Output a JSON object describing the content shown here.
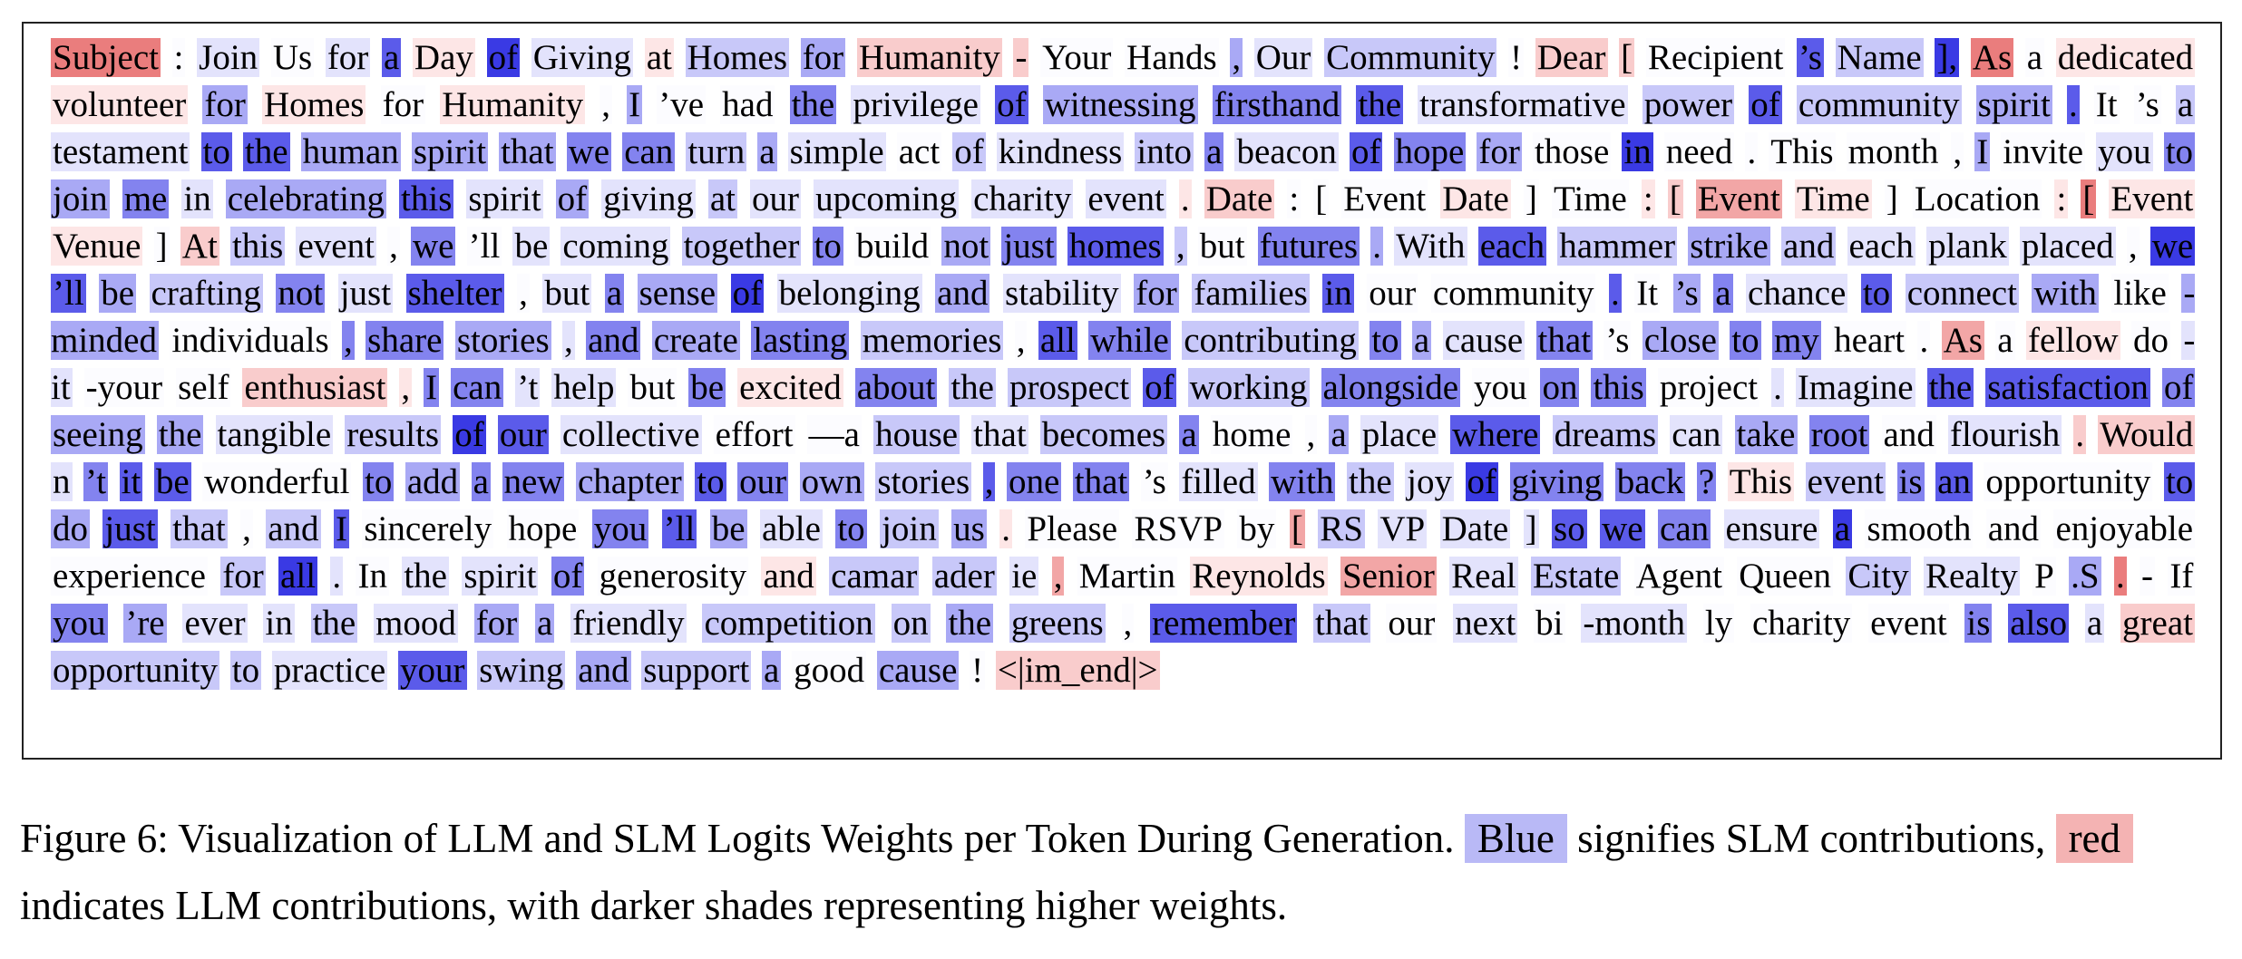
{
  "colors": {
    "blue_scale": [
      "#fcfcff",
      "#e3e3fc",
      "#c8c8f9",
      "#a9a9f5",
      "#8383ef",
      "#5b5bea",
      "#3a3ae4"
    ],
    "red_scale": [
      "#fff8f8",
      "#fde6e6",
      "#f9cccc",
      "#f2a6a6",
      "#ea7d7d"
    ],
    "legend_blue": "#b9b9f6",
    "legend_red": "#f4b3b3"
  },
  "tokens": [
    [
      "Subject",
      "r4"
    ],
    [
      ":",
      "b0"
    ],
    [
      "Join",
      "b1"
    ],
    [
      "Us",
      "b0"
    ],
    [
      "for",
      "b1"
    ],
    [
      "a",
      "b5"
    ],
    [
      "Day",
      "r1"
    ],
    [
      "of",
      "b6"
    ],
    [
      "Giving",
      "b1"
    ],
    [
      "at",
      "r1"
    ],
    [
      "Homes",
      "b2"
    ],
    [
      "for",
      "b3"
    ],
    [
      "Humanity",
      "r2"
    ],
    [
      "-",
      "r2"
    ],
    [
      "Your",
      "b0"
    ],
    [
      "Hands",
      "b0"
    ],
    [
      ",",
      "b3"
    ],
    [
      "Our",
      "b1"
    ],
    [
      "Community",
      "b2"
    ],
    [
      "!",
      "b0"
    ],
    [
      "Dear",
      "r2"
    ],
    [
      "[",
      "r2"
    ],
    [
      "Recipient",
      "b0"
    ],
    [
      "’s",
      "b5"
    ],
    [
      "Name",
      "b2"
    ],
    [
      "],",
      "b6"
    ],
    [
      "As",
      "r4"
    ],
    [
      "a",
      "b0"
    ],
    [
      "dedicated",
      "r1"
    ],
    [
      "volunteer",
      "r1"
    ],
    [
      "for",
      "b3"
    ],
    [
      "Homes",
      "r1"
    ],
    [
      "for",
      "b0"
    ],
    [
      "Humanity",
      "r1"
    ],
    [
      ",",
      "b0"
    ],
    [
      "I",
      "b3"
    ],
    [
      "’ve",
      "b0"
    ],
    [
      "had",
      "b0"
    ],
    [
      "the",
      "b4"
    ],
    [
      "privilege",
      "b1"
    ],
    [
      "of",
      "b5"
    ],
    [
      "witnessing",
      "b3"
    ],
    [
      "firsthand",
      "b4"
    ],
    [
      "the",
      "b5"
    ],
    [
      "transformative",
      "b1"
    ],
    [
      "power",
      "b2"
    ],
    [
      "of",
      "b5"
    ],
    [
      "community",
      "b2"
    ],
    [
      "spirit",
      "b3"
    ],
    [
      ".",
      "b5"
    ],
    [
      "It",
      "b0"
    ],
    [
      "’s",
      "b0"
    ],
    [
      "a",
      "b2"
    ],
    [
      "testament",
      "b1"
    ],
    [
      "to",
      "b5"
    ],
    [
      "the",
      "b5"
    ],
    [
      "human",
      "b3"
    ],
    [
      "spirit",
      "b3"
    ],
    [
      "that",
      "b3"
    ],
    [
      "we",
      "b4"
    ],
    [
      "can",
      "b4"
    ],
    [
      "turn",
      "b2"
    ],
    [
      "a",
      "b3"
    ],
    [
      "simple",
      "b1"
    ],
    [
      "act",
      "b0"
    ],
    [
      "of",
      "b2"
    ],
    [
      "kindness",
      "b1"
    ],
    [
      "into",
      "b2"
    ],
    [
      "a",
      "b4"
    ],
    [
      "beacon",
      "b1"
    ],
    [
      "of",
      "b5"
    ],
    [
      "hope",
      "b4"
    ],
    [
      "for",
      "b3"
    ],
    [
      "those",
      "b0"
    ],
    [
      "in",
      "b6"
    ],
    [
      "need",
      "b0"
    ],
    [
      ".",
      "b0"
    ],
    [
      "This",
      "b0"
    ],
    [
      "month",
      "b0"
    ],
    [
      ",",
      "b0"
    ],
    [
      "I",
      "b3"
    ],
    [
      "invite",
      "b0"
    ],
    [
      "you",
      "b1"
    ],
    [
      "to",
      "b4"
    ],
    [
      "join",
      "b3"
    ],
    [
      "me",
      "b4"
    ],
    [
      "in",
      "b1"
    ],
    [
      "celebrating",
      "b3"
    ],
    [
      "this",
      "b5"
    ],
    [
      "spirit",
      "b1"
    ],
    [
      "of",
      "b3"
    ],
    [
      "giving",
      "b1"
    ],
    [
      "at",
      "b2"
    ],
    [
      "our",
      "b1"
    ],
    [
      "upcoming",
      "b1"
    ],
    [
      "charity",
      "b1"
    ],
    [
      "event",
      "b1"
    ],
    [
      ".",
      "r1"
    ],
    [
      "Date",
      "r2"
    ],
    [
      ":",
      "b0"
    ],
    [
      "[",
      "b0"
    ],
    [
      "Event",
      "b0"
    ],
    [
      "Date",
      "r1"
    ],
    [
      "]",
      "b0"
    ],
    [
      "Time",
      "b0"
    ],
    [
      ":",
      "r1"
    ],
    [
      "[",
      "r2"
    ],
    [
      "Event",
      "r3"
    ],
    [
      "Time",
      "r1"
    ],
    [
      "]",
      "b0"
    ],
    [
      "Location",
      "b0"
    ],
    [
      ":",
      "r1"
    ],
    [
      "[",
      "r4"
    ],
    [
      "Event",
      "r1"
    ],
    [
      "Venue",
      "r1"
    ],
    [
      "]",
      "b0"
    ],
    [
      "At",
      "r2"
    ],
    [
      "this",
      "b2"
    ],
    [
      "event",
      "b1"
    ],
    [
      ",",
      "b0"
    ],
    [
      "we",
      "b4"
    ],
    [
      "’ll",
      "b0"
    ],
    [
      "be",
      "b1"
    ],
    [
      "coming",
      "b1"
    ],
    [
      "together",
      "b2"
    ],
    [
      "to",
      "b4"
    ],
    [
      "build",
      "b0"
    ],
    [
      "not",
      "b3"
    ],
    [
      "just",
      "b4"
    ],
    [
      "homes",
      "b5"
    ],
    [
      ",",
      "b2"
    ],
    [
      "but",
      "b0"
    ],
    [
      "futures",
      "b4"
    ],
    [
      ".",
      "b3"
    ],
    [
      "With",
      "b1"
    ],
    [
      "each",
      "b5"
    ],
    [
      "hammer",
      "b2"
    ],
    [
      "strike",
      "b3"
    ],
    [
      "and",
      "b2"
    ],
    [
      "each",
      "b1"
    ],
    [
      "plank",
      "b1"
    ],
    [
      "placed",
      "b1"
    ],
    [
      ",",
      "b0"
    ],
    [
      "we",
      "b6"
    ],
    [
      "’ll",
      "b5"
    ],
    [
      "be",
      "b3"
    ],
    [
      "crafting",
      "b2"
    ],
    [
      "not",
      "b4"
    ],
    [
      "just",
      "b1"
    ],
    [
      "shelter",
      "b5"
    ],
    [
      ",",
      "b0"
    ],
    [
      "but",
      "b1"
    ],
    [
      "a",
      "b4"
    ],
    [
      "sense",
      "b3"
    ],
    [
      "of",
      "b6"
    ],
    [
      "belonging",
      "b1"
    ],
    [
      "and",
      "b3"
    ],
    [
      "stability",
      "b1"
    ],
    [
      "for",
      "b3"
    ],
    [
      "families",
      "b2"
    ],
    [
      "in",
      "b5"
    ],
    [
      "our",
      "b0"
    ],
    [
      "community",
      "b0"
    ],
    [
      ".",
      "b5"
    ],
    [
      "It",
      "b0"
    ],
    [
      "’s",
      "b3"
    ],
    [
      "a",
      "b4"
    ],
    [
      "chance",
      "b1"
    ],
    [
      "to",
      "b5"
    ],
    [
      "connect",
      "b2"
    ],
    [
      "with",
      "b3"
    ],
    [
      "like",
      "b0"
    ],
    [
      "-minded",
      "b3"
    ],
    [
      "individuals",
      "b0"
    ],
    [
      ",",
      "b4"
    ],
    [
      "share",
      "b4"
    ],
    [
      "stories",
      "b3"
    ],
    [
      ",",
      "b1"
    ],
    [
      "and",
      "b4"
    ],
    [
      "create",
      "b3"
    ],
    [
      "lasting",
      "b4"
    ],
    [
      "memories",
      "b2"
    ],
    [
      ",",
      "b0"
    ],
    [
      "all",
      "b5"
    ],
    [
      "while",
      "b4"
    ],
    [
      "contributing",
      "b2"
    ],
    [
      "to",
      "b4"
    ],
    [
      "a",
      "b3"
    ],
    [
      "cause",
      "b1"
    ],
    [
      "that",
      "b4"
    ],
    [
      "’s",
      "b0"
    ],
    [
      "close",
      "b3"
    ],
    [
      "to",
      "b4"
    ],
    [
      "my",
      "b4"
    ],
    [
      "heart",
      "b0"
    ],
    [
      ".",
      "b0"
    ],
    [
      "As",
      "r3"
    ],
    [
      "a",
      "b0"
    ],
    [
      "fellow",
      "r1"
    ],
    [
      "do",
      "b0"
    ],
    [
      "-it",
      "b1"
    ],
    [
      "-your",
      "b0"
    ],
    [
      "self",
      "b0"
    ],
    [
      "enthusiast",
      "r2"
    ],
    [
      ",",
      "r1"
    ],
    [
      "I",
      "b4"
    ],
    [
      "can",
      "b4"
    ],
    [
      "’t",
      "b1"
    ],
    [
      "help",
      "b1"
    ],
    [
      "but",
      "b0"
    ],
    [
      "be",
      "b4"
    ],
    [
      "excited",
      "r1"
    ],
    [
      "about",
      "b4"
    ],
    [
      "the",
      "b2"
    ],
    [
      "prospect",
      "b2"
    ],
    [
      "of",
      "b5"
    ],
    [
      "working",
      "b2"
    ],
    [
      "alongside",
      "b4"
    ],
    [
      "you",
      "b0"
    ],
    [
      "on",
      "b4"
    ],
    [
      "this",
      "b4"
    ],
    [
      "project",
      "b0"
    ],
    [
      ".",
      "b1"
    ],
    [
      "Imagine",
      "b1"
    ],
    [
      "the",
      "b5"
    ],
    [
      "satisfaction",
      "b5"
    ],
    [
      "of",
      "b4"
    ],
    [
      "seeing",
      "b3"
    ],
    [
      "the",
      "b3"
    ],
    [
      "tangible",
      "b1"
    ],
    [
      "results",
      "b2"
    ],
    [
      "of",
      "b6"
    ],
    [
      "our",
      "b5"
    ],
    [
      "collective",
      "b1"
    ],
    [
      "effort",
      "b0"
    ],
    [
      "—a",
      "b0"
    ],
    [
      "house",
      "b2"
    ],
    [
      "that",
      "b1"
    ],
    [
      "becomes",
      "b2"
    ],
    [
      "a",
      "b4"
    ],
    [
      "home",
      "b0"
    ],
    [
      ",",
      "b0"
    ],
    [
      "a",
      "b3"
    ],
    [
      "place",
      "b1"
    ],
    [
      "where",
      "b5"
    ],
    [
      "dreams",
      "b2"
    ],
    [
      "can",
      "b1"
    ],
    [
      "take",
      "b3"
    ],
    [
      "root",
      "b4"
    ],
    [
      "and",
      "b0"
    ],
    [
      "flourish",
      "b1"
    ],
    [
      ".",
      "r2"
    ],
    [
      "Would",
      "r2"
    ],
    [
      "n",
      "b1"
    ],
    [
      "’t",
      "b4"
    ],
    [
      "it",
      "b5"
    ],
    [
      "be",
      "b5"
    ],
    [
      "wonderful",
      "b0"
    ],
    [
      "to",
      "b4"
    ],
    [
      "add",
      "b3"
    ],
    [
      "a",
      "b4"
    ],
    [
      "new",
      "b4"
    ],
    [
      "chapter",
      "b3"
    ],
    [
      "to",
      "b5"
    ],
    [
      "our",
      "b4"
    ],
    [
      "own",
      "b3"
    ],
    [
      "stories",
      "b2"
    ],
    [
      ",",
      "b5"
    ],
    [
      "one",
      "b4"
    ],
    [
      "that",
      "b4"
    ],
    [
      "’s",
      "b0"
    ],
    [
      "filled",
      "b1"
    ],
    [
      "with",
      "b4"
    ],
    [
      "the",
      "b2"
    ],
    [
      "joy",
      "b1"
    ],
    [
      "of",
      "b6"
    ],
    [
      "giving",
      "b4"
    ],
    [
      "back",
      "b4"
    ],
    [
      "?",
      "b4"
    ],
    [
      "This",
      "r1"
    ],
    [
      "event",
      "b2"
    ],
    [
      "is",
      "b4"
    ],
    [
      "an",
      "b5"
    ],
    [
      "opportunity",
      "b0"
    ],
    [
      "to",
      "b5"
    ],
    [
      "do",
      "b3"
    ],
    [
      "just",
      "b5"
    ],
    [
      "that",
      "b2"
    ],
    [
      ",",
      "b0"
    ],
    [
      "and",
      "b2"
    ],
    [
      "I",
      "b5"
    ],
    [
      "sincerely",
      "b0"
    ],
    [
      "hope",
      "b0"
    ],
    [
      "you",
      "b4"
    ],
    [
      "’ll",
      "b5"
    ],
    [
      "be",
      "b3"
    ],
    [
      "able",
      "b1"
    ],
    [
      "to",
      "b4"
    ],
    [
      "join",
      "b2"
    ],
    [
      "us",
      "b3"
    ],
    [
      ".",
      "r1"
    ],
    [
      "Please",
      "b0"
    ],
    [
      "RSVP",
      "b0"
    ],
    [
      "by",
      "b0"
    ],
    [
      "[",
      "r3"
    ],
    [
      "RS",
      "b2"
    ],
    [
      "VP",
      "b1"
    ],
    [
      "Date",
      "b1"
    ],
    [
      "]",
      "b1"
    ],
    [
      "so",
      "b5"
    ],
    [
      "we",
      "b5"
    ],
    [
      "can",
      "b4"
    ],
    [
      "ensure",
      "b1"
    ],
    [
      "a",
      "b6"
    ],
    [
      "smooth",
      "b0"
    ],
    [
      "and",
      "b0"
    ],
    [
      "enjoyable",
      "b0"
    ],
    [
      "experience",
      "b0"
    ],
    [
      "for",
      "b2"
    ],
    [
      "all",
      "b6"
    ],
    [
      ".",
      "b1"
    ],
    [
      "In",
      "b0"
    ],
    [
      "the",
      "b1"
    ],
    [
      "spirit",
      "b1"
    ],
    [
      "of",
      "b4"
    ],
    [
      "generosity",
      "b0"
    ],
    [
      "and",
      "r1"
    ],
    [
      "camar",
      "b2"
    ],
    [
      "ader",
      "b2"
    ],
    [
      "ie",
      "b1"
    ],
    [
      ",",
      "r3"
    ],
    [
      "Martin",
      "b0"
    ],
    [
      "Reynolds",
      "r1"
    ],
    [
      "Senior",
      "r3"
    ],
    [
      "Real",
      "b1"
    ],
    [
      "Estate",
      "b2"
    ],
    [
      "Agent",
      "b0"
    ],
    [
      "Queen",
      "b0"
    ],
    [
      "City",
      "b2"
    ],
    [
      "Realty",
      "b1"
    ],
    [
      "P",
      "b0"
    ],
    [
      ".S",
      "b3"
    ],
    [
      ".",
      "r4"
    ],
    [
      "-",
      "b0"
    ],
    [
      "If",
      "b0"
    ],
    [
      "you",
      "b4"
    ],
    [
      "’re",
      "b3"
    ],
    [
      "ever",
      "b1"
    ],
    [
      "in",
      "b1"
    ],
    [
      "the",
      "b2"
    ],
    [
      "mood",
      "b1"
    ],
    [
      "for",
      "b3"
    ],
    [
      "a",
      "b3"
    ],
    [
      "friendly",
      "b1"
    ],
    [
      "competition",
      "b2"
    ],
    [
      "on",
      "b2"
    ],
    [
      "the",
      "b3"
    ],
    [
      "greens",
      "b2"
    ],
    [
      ",",
      "b0"
    ],
    [
      "remember",
      "b5"
    ],
    [
      "that",
      "b2"
    ],
    [
      "our",
      "b0"
    ],
    [
      "next",
      "b1"
    ],
    [
      "bi",
      "b0"
    ],
    [
      "-month",
      "b1"
    ],
    [
      "ly",
      "b0"
    ],
    [
      "charity",
      "b0"
    ],
    [
      "event",
      "b0"
    ],
    [
      "is",
      "b4"
    ],
    [
      "also",
      "b5"
    ],
    [
      "a",
      "b1"
    ],
    [
      "great",
      "r2"
    ],
    [
      "opportunity",
      "b2"
    ],
    [
      "to",
      "b2"
    ],
    [
      "practice",
      "b1"
    ],
    [
      "your",
      "b5"
    ],
    [
      "swing",
      "b2"
    ],
    [
      "and",
      "b3"
    ],
    [
      "support",
      "b2"
    ],
    [
      "a",
      "b3"
    ],
    [
      "good",
      "b0"
    ],
    [
      "cause",
      "b3"
    ],
    [
      "!",
      "b0"
    ],
    [
      "<|im_end|>",
      "r2"
    ]
  ],
  "caption": {
    "prefix": "Figure 6: Visualization of LLM and SLM Logits Weights per Token During Generation.",
    "blue_word": "Blue",
    "blue_text": "signifies SLM contributions,",
    "red_word": "red",
    "red_text": "indicates LLM contributions, with darker shades representing higher weights."
  }
}
